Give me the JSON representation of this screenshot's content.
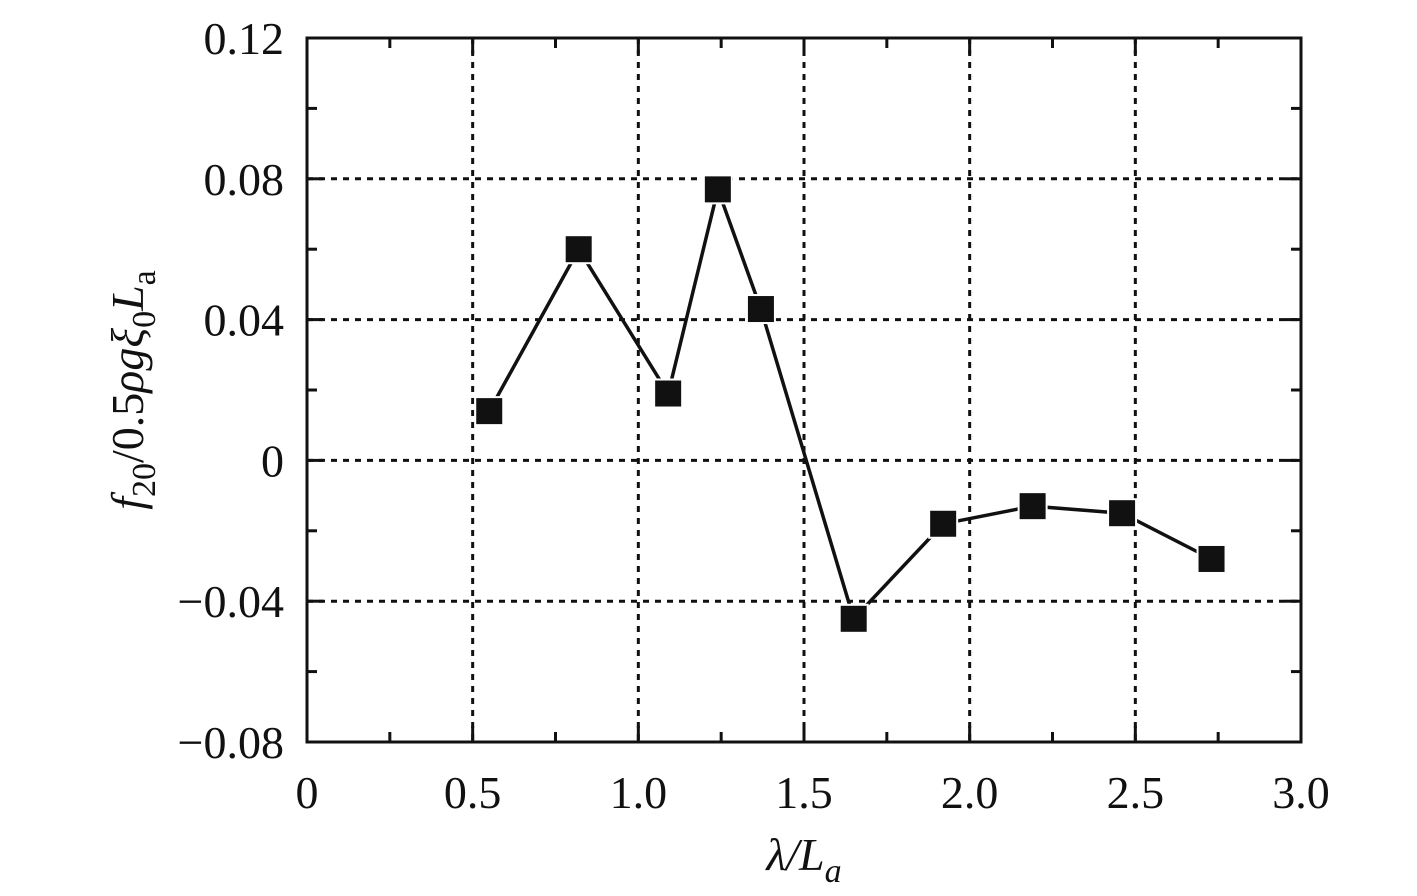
{
  "chart_data": {
    "type": "line",
    "title": "",
    "xlabel": "λ/L_a",
    "ylabel": "f_20/0.5ρgξ_0L_a",
    "xlim": [
      0,
      3.0
    ],
    "ylim": [
      -0.08,
      0.12
    ],
    "x_ticks": [
      0,
      0.5,
      1.0,
      1.5,
      2.0,
      2.5,
      3.0
    ],
    "x_tick_labels": [
      "0",
      "0.5",
      "1.0",
      "1.5",
      "2.0",
      "2.5",
      "3.0"
    ],
    "y_ticks": [
      -0.08,
      -0.04,
      0,
      0.04,
      0.08,
      0.12
    ],
    "y_tick_labels": [
      "−0.08",
      "−0.04",
      "0",
      "0.04",
      "0.08",
      "0.12"
    ],
    "grid": true,
    "marker": "square",
    "series": [
      {
        "x": [
          0.55,
          0.82,
          1.09,
          1.24,
          1.37,
          1.65,
          1.92,
          2.19,
          2.46,
          2.73
        ],
        "y": [
          0.014,
          0.06,
          0.019,
          0.077,
          0.043,
          -0.045,
          -0.018,
          -0.013,
          -0.015,
          -0.028
        ]
      }
    ],
    "colors": {
      "line": "#111111",
      "marker": "#111111",
      "grid": "#111111",
      "axis": "#111111"
    }
  }
}
